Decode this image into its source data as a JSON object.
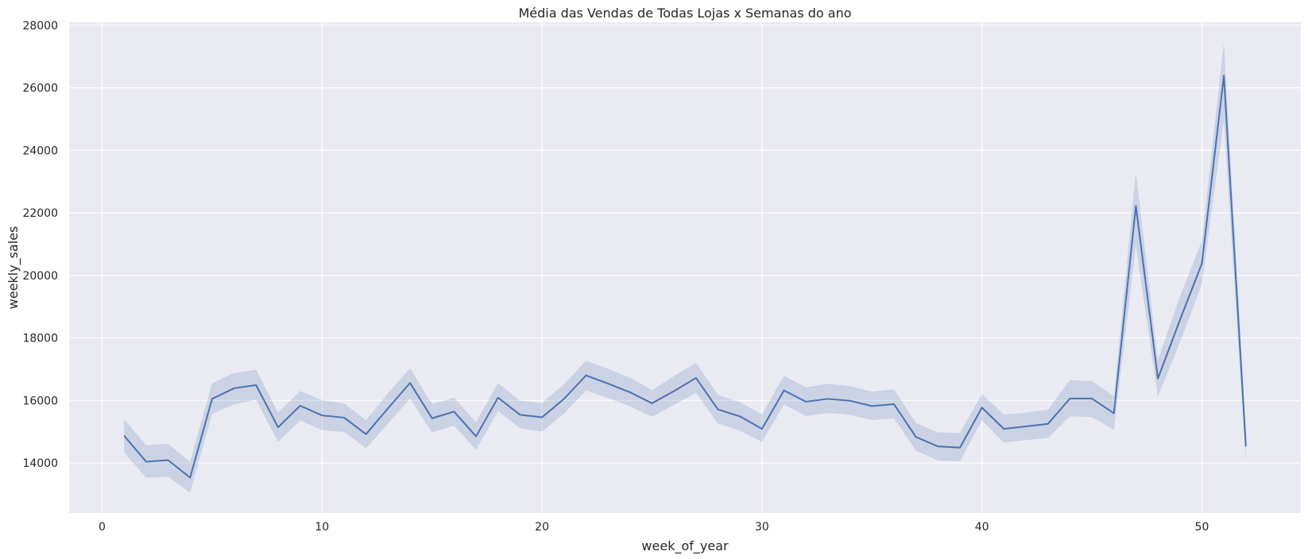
{
  "chart_data": {
    "type": "line",
    "title": "Média das Vendas de Todas Lojas x Semanas do ano",
    "xlabel": "week_of_year",
    "ylabel": "weekly_sales",
    "xlim": [
      -1.5,
      54.5
    ],
    "ylim": [
      12400,
      28100
    ],
    "xticks": [
      0,
      10,
      20,
      30,
      40,
      50
    ],
    "yticks": [
      14000,
      16000,
      18000,
      20000,
      22000,
      24000,
      26000,
      28000
    ],
    "grid": true,
    "legend": "none",
    "colors": {
      "background": "#eaeaf2",
      "grid": "#ffffff",
      "line": "#4c72b0",
      "band": "#4c72b0"
    },
    "series": [
      {
        "x": [
          1,
          2,
          3,
          4,
          5,
          6,
          7,
          8,
          9,
          10,
          11,
          12,
          13,
          14,
          15,
          16,
          17,
          18,
          19,
          20,
          21,
          22,
          23,
          24,
          25,
          26,
          27,
          28,
          29,
          30,
          31,
          32,
          33,
          34,
          35,
          36,
          37,
          38,
          39,
          40,
          41,
          42,
          43,
          44,
          45,
          46,
          47,
          48,
          49,
          50,
          51,
          52
        ],
        "y": [
          14870,
          14040,
          14090,
          13530,
          16050,
          16390,
          16490,
          15140,
          15830,
          15520,
          15450,
          14920,
          15750,
          16560,
          15430,
          15640,
          14850,
          16090,
          15540,
          15460,
          16050,
          16800,
          16540,
          16260,
          15910,
          16300,
          16720,
          15710,
          15490,
          15090,
          16320,
          15960,
          16050,
          15990,
          15820,
          15880,
          14830,
          14530,
          14490,
          15770,
          15090,
          15170,
          15250,
          16060,
          16060,
          15590,
          22220,
          16700,
          18570,
          20380,
          26390,
          14530
        ],
        "lower": [
          14330,
          13530,
          13560,
          13050,
          15570,
          15870,
          16020,
          14670,
          15360,
          15050,
          14990,
          14470,
          15260,
          16060,
          14980,
          15190,
          14420,
          15660,
          15110,
          15000,
          15580,
          16320,
          16080,
          15810,
          15480,
          15860,
          16240,
          15260,
          15030,
          14670,
          15870,
          15500,
          15600,
          15540,
          15370,
          15430,
          14390,
          14080,
          14050,
          15360,
          14650,
          14730,
          14800,
          15490,
          15470,
          15060,
          20950,
          16130,
          17850,
          19720,
          24960,
          14050
        ],
        "upper": [
          15400,
          14570,
          14610,
          14040,
          16550,
          16880,
          16980,
          15610,
          16300,
          16010,
          15900,
          15370,
          16230,
          17030,
          15880,
          16090,
          15300,
          16560,
          15990,
          15920,
          16520,
          17270,
          17010,
          16730,
          16330,
          16780,
          17200,
          16180,
          15940,
          15550,
          16790,
          16420,
          16530,
          16460,
          16280,
          16350,
          15280,
          14980,
          14960,
          16200,
          15550,
          15610,
          15700,
          16650,
          16620,
          16130,
          23310,
          17290,
          19320,
          21100,
          27440,
          15050
        ]
      }
    ]
  }
}
